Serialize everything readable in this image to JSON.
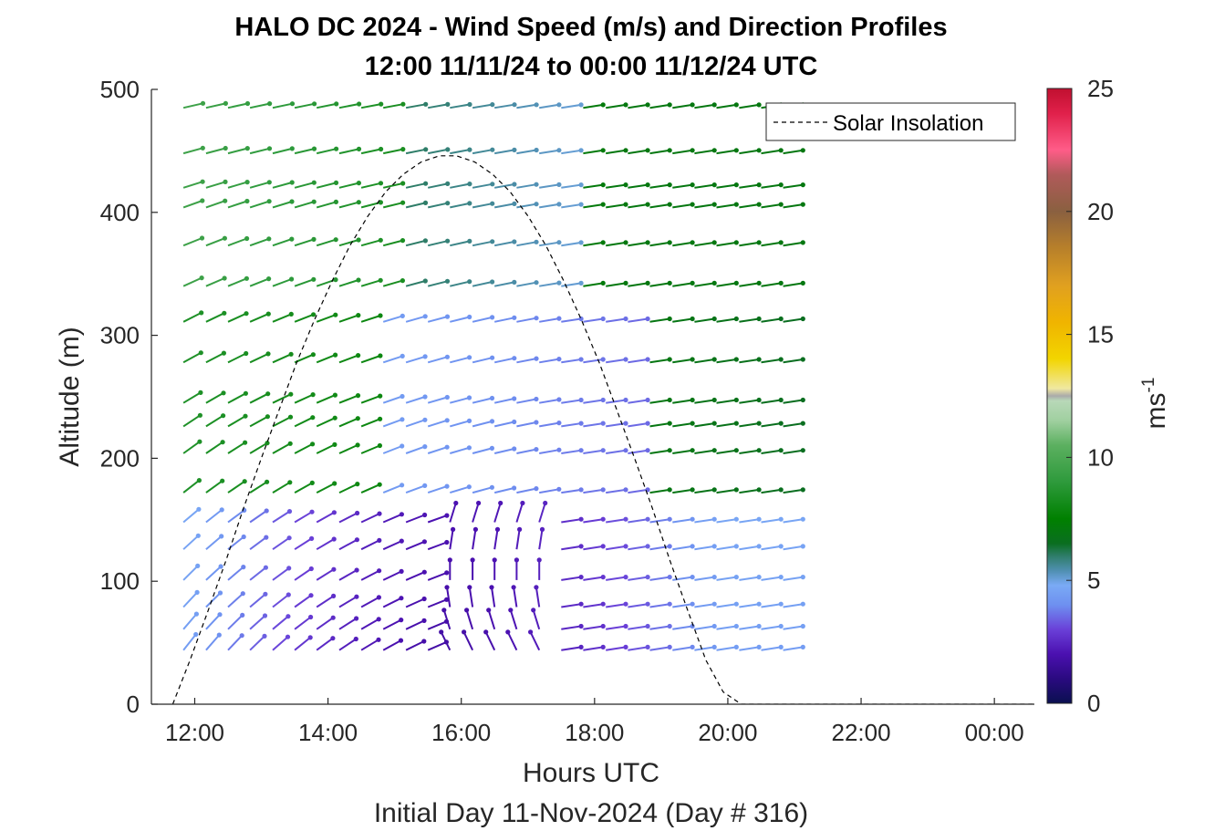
{
  "chart_data": {
    "type": "line",
    "title": [
      "HALO DC 2024 - Wind Speed (m/s) and Direction Profiles",
      "12:00 11/11/24 to 00:00 11/12/24  UTC"
    ],
    "xlabel": "Hours UTC",
    "subxlabel": "Initial Day 11-Nov-2024 (Day # 316)",
    "ylabel": "Altitude (m)",
    "xlim": [
      11.35,
      24.6
    ],
    "ylim": [
      0,
      500
    ],
    "x_ticks": [
      12,
      14,
      16,
      18,
      20,
      22,
      24
    ],
    "x_tick_labels": [
      "12:00",
      "14:00",
      "16:00",
      "18:00",
      "20:00",
      "22:00",
      "00:00"
    ],
    "y_ticks": [
      0,
      100,
      200,
      300,
      400,
      500
    ],
    "y_tick_labels": [
      "0",
      "100",
      "200",
      "300",
      "400",
      "500"
    ],
    "colorbar": {
      "label": "ms",
      "label_exponent": "-1",
      "lim": [
        0,
        25
      ],
      "ticks": [
        0,
        5,
        10,
        15,
        20,
        25
      ],
      "tick_labels": [
        "0",
        "5",
        "10",
        "15",
        "20",
        "25"
      ],
      "colormap": [
        [
          0,
          "#0a1050"
        ],
        [
          1,
          "#2a0a80"
        ],
        [
          2,
          "#4b10b0"
        ],
        [
          3,
          "#6a40d8"
        ],
        [
          4,
          "#6e90f0"
        ],
        [
          4.8,
          "#7aaaf5"
        ],
        [
          5.4,
          "#4f8fb0"
        ],
        [
          6,
          "#2e7d68"
        ],
        [
          6.5,
          "#0a6e20"
        ],
        [
          7.5,
          "#008000"
        ],
        [
          9,
          "#2e9a3c"
        ],
        [
          10.5,
          "#5cb060"
        ],
        [
          11.5,
          "#a0d0a0"
        ],
        [
          12.3,
          "#b8d8b8"
        ],
        [
          12.5,
          "#aaaaaa"
        ],
        [
          12.8,
          "#f0e8a0"
        ],
        [
          14,
          "#f2d500"
        ],
        [
          15.5,
          "#f0b400"
        ],
        [
          17,
          "#e0a020"
        ],
        [
          18.5,
          "#b8802a"
        ],
        [
          20,
          "#8a6040"
        ],
        [
          21.5,
          "#b05a5a"
        ],
        [
          22.5,
          "#ff5c88"
        ],
        [
          24,
          "#e0204a"
        ],
        [
          25,
          "#c01030"
        ]
      ]
    },
    "legend": {
      "entries": [
        "Solar Insolation"
      ],
      "position": "top-right"
    },
    "solar_insolation": {
      "style": "dashed",
      "x": [
        11.67,
        11.93,
        12.2,
        12.47,
        12.73,
        13.0,
        13.27,
        13.53,
        13.8,
        14.07,
        14.33,
        14.6,
        14.87,
        15.13,
        15.4,
        15.67,
        15.93,
        16.2,
        16.47,
        16.73,
        17.0,
        17.27,
        17.53,
        17.8,
        18.07,
        18.33,
        18.6,
        18.87,
        19.13,
        19.4,
        19.67,
        19.93,
        20.2,
        20.47,
        20.73,
        21.0,
        21.27,
        21.53,
        21.8,
        22.07,
        22.2,
        24.6
      ],
      "y": [
        0,
        36,
        76,
        117,
        159,
        200,
        240,
        278,
        313,
        345,
        373,
        397,
        417,
        431,
        441,
        446,
        446,
        441,
        431,
        417,
        397,
        373,
        345,
        313,
        278,
        240,
        200,
        159,
        117,
        76,
        36,
        10,
        0,
        0,
        0,
        0,
        0,
        0,
        0,
        0,
        0,
        0
      ]
    },
    "wind_barbs": {
      "times": [
        11.83,
        12.17,
        12.5,
        12.83,
        13.17,
        13.5,
        13.83,
        14.17,
        14.5,
        14.83,
        15.17,
        15.5,
        15.83,
        16.17,
        16.5,
        16.83,
        17.17,
        17.5,
        17.83,
        18.17,
        18.5,
        18.83,
        19.17,
        19.5,
        19.83,
        20.17,
        20.5,
        20.83
      ],
      "altitudes": [
        44,
        61,
        79,
        101,
        126,
        148,
        172,
        204,
        226,
        245,
        278,
        311,
        340,
        373,
        404,
        420,
        448,
        485
      ],
      "note": "wind speed (m/s) varies with altitude and time; direction rotates from SW-ish low/early to W aloft"
    }
  }
}
